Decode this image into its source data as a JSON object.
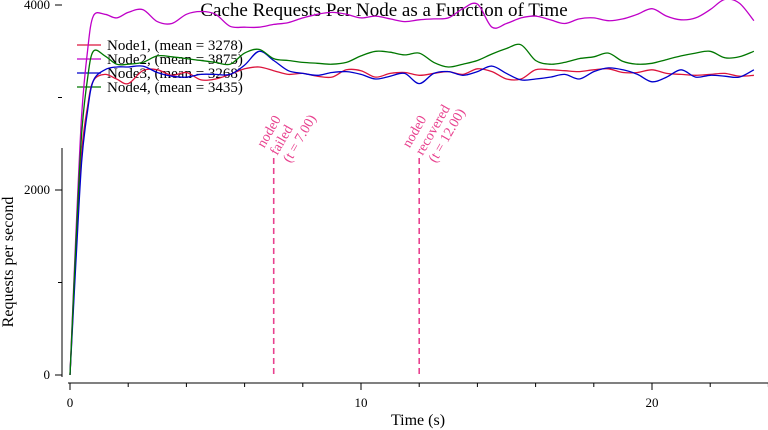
{
  "chart_data": {
    "type": "line",
    "title": "Cache Requests Per Node as a Function of Time",
    "xlabel": "Time (s)",
    "ylabel": "Requests per second",
    "xlim": [
      0,
      24
    ],
    "ylim": [
      0,
      5000
    ],
    "x_ticks": [
      0,
      10,
      20
    ],
    "x_tick_labels": [
      "0",
      "10",
      "20"
    ],
    "x_minor_ticks": [
      2,
      4,
      6,
      8,
      12,
      14,
      16,
      18,
      22,
      24
    ],
    "y_ticks": [
      0,
      2000,
      4000
    ],
    "y_tick_labels": [
      "0",
      "2000",
      "4000"
    ],
    "y_minor_ticks": [
      1000,
      3000,
      5000
    ],
    "legend_position": "top-left",
    "grid": false,
    "series": [
      {
        "name": "Node1, (mean = 3278)",
        "color": "#dc143c",
        "x": [
          0,
          0.2,
          0.4,
          0.6,
          0.8,
          1.2,
          1.6,
          2.0,
          2.5,
          3.0,
          3.5,
          4.0,
          4.5,
          5.0,
          5.5,
          6.0,
          6.5,
          7.0,
          7.5,
          8.0,
          8.5,
          9.0,
          9.5,
          10.0,
          10.5,
          11.0,
          11.5,
          12.0,
          12.5,
          13.0,
          13.5,
          14.0,
          14.5,
          15.0,
          15.5,
          16.0,
          16.5,
          17.0,
          17.5,
          18.0,
          18.5,
          19.0,
          19.5,
          20.0,
          20.5,
          21.0,
          21.5,
          22.0,
          22.5,
          23.0,
          23.5
        ],
        "y": [
          0,
          1300,
          2400,
          2900,
          3180,
          3250,
          3200,
          3150,
          3290,
          3300,
          3240,
          3270,
          3190,
          3200,
          3250,
          3310,
          3330,
          3290,
          3250,
          3260,
          3230,
          3220,
          3300,
          3290,
          3220,
          3260,
          3270,
          3240,
          3260,
          3280,
          3250,
          3310,
          3280,
          3200,
          3200,
          3300,
          3300,
          3290,
          3280,
          3300,
          3310,
          3270,
          3270,
          3300,
          3260,
          3250,
          3240,
          3250,
          3260,
          3230,
          3240
        ]
      },
      {
        "name": "Node2, (mean = 3875)",
        "color": "#bf00c8",
        "x": [
          0,
          0.2,
          0.4,
          0.6,
          0.8,
          1.2,
          1.6,
          2.0,
          2.5,
          3.0,
          3.5,
          4.0,
          4.5,
          5.0,
          5.5,
          6.0,
          6.5,
          7.0,
          7.5,
          8.0,
          8.5,
          9.0,
          9.5,
          10.0,
          10.5,
          11.0,
          11.5,
          12.0,
          12.5,
          13.0,
          13.5,
          14.0,
          14.5,
          15.0,
          15.5,
          16.0,
          16.5,
          17.0,
          17.5,
          18.0,
          18.5,
          19.0,
          19.5,
          20.0,
          20.5,
          21.0,
          21.5,
          22.0,
          22.5,
          23.0,
          23.5
        ],
        "y": [
          0,
          1500,
          2800,
          3500,
          3880,
          3900,
          3860,
          3920,
          3950,
          3820,
          3800,
          3900,
          3930,
          3900,
          3770,
          3760,
          3760,
          3790,
          3810,
          3860,
          3900,
          3920,
          3900,
          3860,
          3880,
          3850,
          3820,
          3840,
          3850,
          3860,
          3960,
          4010,
          3760,
          3800,
          3860,
          3880,
          3840,
          3800,
          3850,
          3860,
          3830,
          3850,
          3900,
          3960,
          3880,
          3840,
          3860,
          3950,
          4060,
          4020,
          3830
        ]
      },
      {
        "name": "Node3, (mean = 3268)",
        "color": "#0000cc",
        "x": [
          0,
          0.2,
          0.4,
          0.6,
          0.8,
          1.2,
          1.6,
          2.0,
          2.5,
          3.0,
          3.5,
          4.0,
          4.5,
          5.0,
          5.5,
          6.0,
          6.5,
          7.0,
          7.5,
          8.0,
          8.5,
          9.0,
          9.5,
          10.0,
          10.5,
          11.0,
          11.5,
          12.0,
          12.5,
          13.0,
          13.5,
          14.0,
          14.5,
          15.0,
          15.5,
          16.0,
          16.5,
          17.0,
          17.5,
          18.0,
          18.5,
          19.0,
          19.5,
          20.0,
          20.5,
          21.0,
          21.5,
          22.0,
          22.5,
          23.0,
          23.5
        ],
        "y": [
          0,
          1200,
          2300,
          2850,
          3180,
          3300,
          3330,
          3330,
          3340,
          3270,
          3230,
          3220,
          3250,
          3250,
          3250,
          3350,
          3500,
          3400,
          3290,
          3260,
          3240,
          3270,
          3280,
          3250,
          3200,
          3230,
          3260,
          3150,
          3260,
          3280,
          3240,
          3280,
          3340,
          3260,
          3190,
          3200,
          3220,
          3250,
          3200,
          3280,
          3320,
          3300,
          3250,
          3170,
          3220,
          3300,
          3220,
          3240,
          3230,
          3220,
          3300
        ]
      },
      {
        "name": "Node4, (mean = 3435)",
        "color": "#007700",
        "x": [
          0,
          0.2,
          0.4,
          0.6,
          0.8,
          1.2,
          1.6,
          2.0,
          2.5,
          3.0,
          3.5,
          4.0,
          4.5,
          5.0,
          5.5,
          6.0,
          6.5,
          7.0,
          7.5,
          8.0,
          8.5,
          9.0,
          9.5,
          10.0,
          10.5,
          11.0,
          11.5,
          12.0,
          12.5,
          13.0,
          13.5,
          14.0,
          14.5,
          15.0,
          15.5,
          16.0,
          16.5,
          17.0,
          17.5,
          18.0,
          18.5,
          19.0,
          19.5,
          20.0,
          20.5,
          21.0,
          21.5,
          22.0,
          22.5,
          23.0,
          23.5
        ],
        "y": [
          0,
          1400,
          2600,
          3200,
          3500,
          3450,
          3360,
          3360,
          3380,
          3450,
          3440,
          3420,
          3400,
          3380,
          3360,
          3480,
          3520,
          3420,
          3400,
          3380,
          3370,
          3360,
          3380,
          3450,
          3500,
          3490,
          3460,
          3480,
          3380,
          3330,
          3360,
          3400,
          3470,
          3530,
          3570,
          3400,
          3360,
          3380,
          3420,
          3440,
          3480,
          3390,
          3360,
          3370,
          3410,
          3450,
          3480,
          3500,
          3430,
          3440,
          3500
        ]
      }
    ],
    "annotations": [
      {
        "x": 7.0,
        "lines": [
          "node0",
          "failed",
          "(t = 7.00)"
        ],
        "color": "#e8428f"
      },
      {
        "x": 12.0,
        "lines": [
          "node0",
          "recovered",
          "(t = 12.00)"
        ],
        "color": "#e8428f"
      }
    ]
  }
}
